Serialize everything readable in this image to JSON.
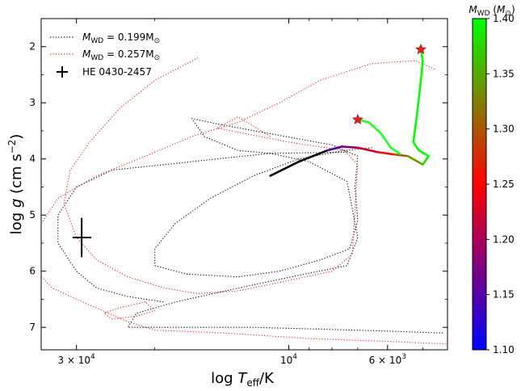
{
  "chart_data": {
    "type": "line",
    "xlabel": "log T_eff/K",
    "ylabel": "log g (cm s^-2)",
    "x_scale": "log_reversed",
    "xlim": [
      36000,
      4400
    ],
    "ylim": [
      7.4,
      1.5
    ],
    "x_ticks": [
      {
        "value": 30000,
        "label": "3 × 10^4"
      },
      {
        "value": 10000,
        "label": "10^4"
      },
      {
        "value": 6000,
        "label": "6 × 10^3"
      }
    ],
    "y_ticks": [
      2,
      3,
      4,
      5,
      6,
      7
    ],
    "legend": {
      "placement": "top-left",
      "entries": [
        {
          "label": "M_WD = 0.199M_⊙",
          "color": "#000000",
          "style": "dotted"
        },
        {
          "label": "M_WD = 0.257M_⊙",
          "color": "#e8231f",
          "style": "dotted"
        },
        {
          "label": "HE 0430-2457",
          "color": "#000000",
          "style": "cross-marker"
        }
      ]
    },
    "colorbar": {
      "title": "M_WD (M_⊙)",
      "range": [
        1.1,
        1.4
      ],
      "ticks": [
        "1.10",
        "1.15",
        "1.20",
        "1.25",
        "1.30",
        "1.35",
        "1.40"
      ],
      "colors": [
        "#0000ff",
        "#ff0000",
        "#00ff00"
      ]
    },
    "series": [
      {
        "name": "M_WD = 0.199M_⊙",
        "color": "#000000",
        "style": "dotted",
        "points": [
          [
            6500,
            3.8
          ],
          [
            7500,
            3.85
          ],
          [
            9500,
            4.0
          ],
          [
            12000,
            4.3
          ],
          [
            15000,
            4.7
          ],
          [
            18000,
            5.15
          ],
          [
            20000,
            5.6
          ],
          [
            20000,
            5.9
          ],
          [
            17000,
            6.05
          ],
          [
            13000,
            6.1
          ],
          [
            10500,
            6.0
          ],
          [
            8500,
            5.8
          ],
          [
            7300,
            5.6
          ],
          [
            7000,
            5.1
          ],
          [
            7100,
            4.5
          ],
          [
            7000,
            3.95
          ],
          [
            8000,
            3.75
          ],
          [
            11000,
            3.55
          ],
          [
            14000,
            3.4
          ],
          [
            16500,
            3.28
          ],
          [
            15500,
            3.6
          ],
          [
            13000,
            3.85
          ],
          [
            11000,
            3.9
          ],
          [
            9000,
            4.05
          ],
          [
            7400,
            4.4
          ],
          [
            7000,
            5.4
          ],
          [
            7400,
            5.9
          ],
          [
            9200,
            6.05
          ],
          [
            13000,
            6.3
          ],
          [
            18000,
            6.55
          ],
          [
            22000,
            6.75
          ],
          [
            23000,
            7.0
          ],
          [
            12000,
            7.0
          ],
          [
            7000,
            7.05
          ],
          [
            4500,
            7.1
          ]
        ]
      },
      {
        "name": "M_WD = 0.199M_⊙ (outer loop)",
        "color": "#000000",
        "style": "dotted",
        "points": [
          [
            7400,
            3.88
          ],
          [
            11000,
            3.9
          ],
          [
            14500,
            4.0
          ],
          [
            19000,
            4.1
          ],
          [
            25000,
            4.2
          ],
          [
            30000,
            4.5
          ],
          [
            33000,
            5.0
          ],
          [
            33000,
            5.5
          ],
          [
            30000,
            6.0
          ],
          [
            27000,
            6.3
          ],
          [
            23000,
            6.45
          ],
          [
            19000,
            6.55
          ]
        ]
      },
      {
        "name": "M_WD = 0.257M_⊙",
        "color": "#e8231f",
        "style": "dotted",
        "points": [
          [
            4700,
            2.4
          ],
          [
            5200,
            2.25
          ],
          [
            6500,
            2.3
          ],
          [
            8500,
            2.6
          ],
          [
            10500,
            3.0
          ],
          [
            13000,
            3.35
          ],
          [
            16500,
            3.6
          ],
          [
            21000,
            3.95
          ],
          [
            27000,
            4.3
          ],
          [
            33000,
            4.7
          ],
          [
            37000,
            5.3
          ],
          [
            38000,
            5.9
          ],
          [
            34000,
            6.3
          ],
          [
            29000,
            6.55
          ],
          [
            23000,
            6.9
          ],
          [
            20000,
            7.05
          ],
          [
            14000,
            7.1
          ],
          [
            9000,
            7.2
          ],
          [
            6000,
            7.25
          ],
          [
            4300,
            7.3
          ]
        ]
      },
      {
        "name": "M_WD = 0.257M_⊙ (inner loop)",
        "color": "#e8231f",
        "style": "dotted",
        "points": [
          [
            16000,
            2.2
          ],
          [
            20000,
            2.6
          ],
          [
            24000,
            3.1
          ],
          [
            28000,
            3.7
          ],
          [
            31000,
            4.2
          ],
          [
            32000,
            4.8
          ],
          [
            30000,
            5.4
          ],
          [
            27000,
            5.8
          ],
          [
            23000,
            6.1
          ],
          [
            19000,
            6.3
          ],
          [
            16000,
            6.4
          ],
          [
            13000,
            6.35
          ],
          [
            10500,
            6.2
          ],
          [
            8000,
            6.0
          ],
          [
            7200,
            5.7
          ],
          [
            7100,
            4.9
          ],
          [
            7000,
            4.1
          ],
          [
            7500,
            3.85
          ],
          [
            10000,
            3.7
          ],
          [
            14500,
            3.45
          ],
          [
            13000,
            3.25
          ],
          [
            11000,
            3.6
          ]
        ]
      },
      {
        "name": "M_WD = 0.257M_⊙ (loop 2)",
        "color": "#e8231f",
        "style": "dotted",
        "points": [
          [
            21000,
            6.55
          ],
          [
            24000,
            6.65
          ],
          [
            26000,
            6.75
          ],
          [
            25000,
            6.85
          ],
          [
            22000,
            6.8
          ],
          [
            20000,
            6.7
          ],
          [
            21000,
            6.55
          ]
        ]
      },
      {
        "name": "HE 0430-2457 track",
        "color": "gradient",
        "style": "solid",
        "points": [
          [
            11000,
            4.3
          ],
          [
            9500,
            4.05
          ],
          [
            8200,
            3.85
          ],
          [
            7600,
            3.78
          ],
          [
            7000,
            3.8
          ],
          [
            6300,
            3.88
          ],
          [
            5800,
            3.92
          ],
          [
            5400,
            3.95
          ],
          [
            5000,
            4.1
          ],
          [
            4850,
            3.95
          ],
          [
            5100,
            3.85
          ],
          [
            5250,
            3.7
          ],
          [
            5150,
            3.2
          ],
          [
            5050,
            2.6
          ],
          [
            5000,
            2.25
          ],
          [
            5050,
            2.05
          ]
        ],
        "mass": [
          1.1,
          1.12,
          1.15,
          1.18,
          1.22,
          1.26,
          1.3,
          1.34,
          1.38,
          1.4,
          1.4,
          1.4,
          1.4,
          1.4,
          1.4,
          1.4
        ]
      },
      {
        "name": "HE 0430-2457 branch",
        "color": "#22ff22",
        "style": "solid",
        "points": [
          [
            7000,
            3.3
          ],
          [
            6600,
            3.35
          ],
          [
            6200,
            3.55
          ],
          [
            5900,
            3.8
          ],
          [
            5600,
            3.92
          ]
        ]
      }
    ],
    "markers": [
      {
        "kind": "star",
        "x": 7000,
        "y": 3.3,
        "color": "#e8231f"
      },
      {
        "kind": "star",
        "x": 5050,
        "y": 2.05,
        "color": "#e8231f"
      },
      {
        "kind": "cross",
        "name": "HE 0430-2457",
        "x": 29200,
        "y": 5.4,
        "xerr": 1400,
        "yerr": 0.35,
        "color": "#000000"
      }
    ]
  }
}
